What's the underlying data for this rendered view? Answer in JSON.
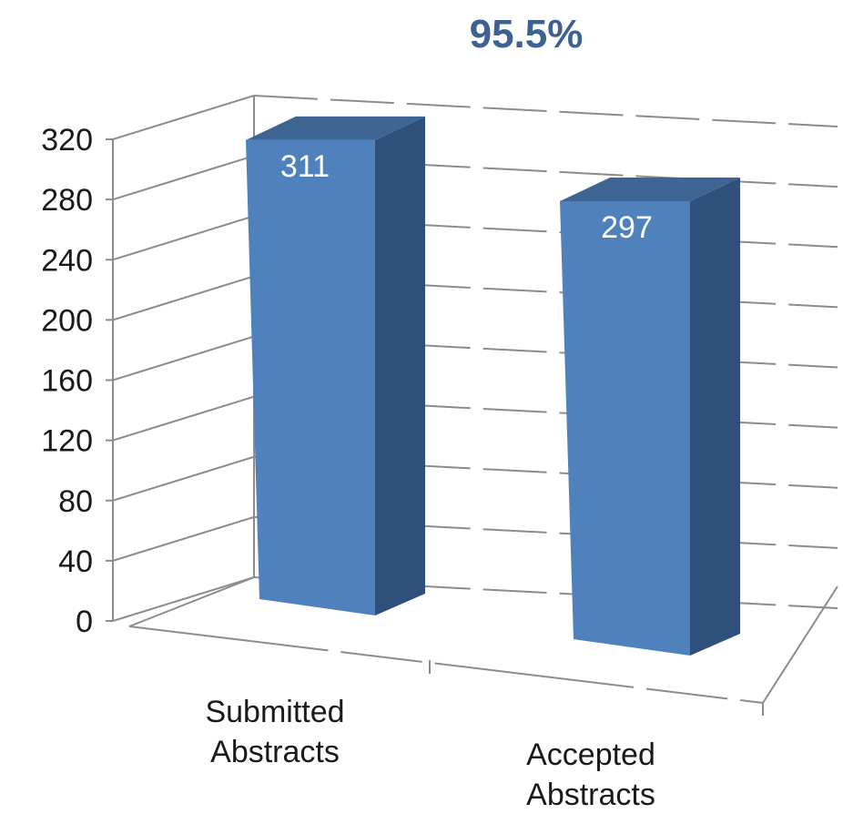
{
  "chart_data": {
    "type": "bar",
    "title": "95.5%",
    "categories": [
      "Submitted Abstracts",
      "Accepted Abstracts"
    ],
    "category_lines": [
      [
        "Submitted",
        "Abstracts"
      ],
      [
        "Accepted",
        "Abstracts"
      ]
    ],
    "values": [
      311,
      297
    ],
    "data_labels": [
      "311",
      "297"
    ],
    "ylim": [
      0,
      320
    ],
    "yticks": [
      0,
      40,
      80,
      120,
      160,
      200,
      240,
      280,
      320
    ],
    "ytick_labels": [
      "0",
      "40",
      "80",
      "120",
      "160",
      "200",
      "240",
      "280",
      "320"
    ],
    "grid": true,
    "three_d": true,
    "legend": "none",
    "colors": {
      "title": "#3D6292",
      "bar_front": "#4F81BD",
      "bar_side": "#2F507A",
      "bar_top": "#3E6494",
      "data_label": "#ffffff",
      "gridline": "#8C8C8C",
      "axis": "#8C8C8C",
      "tick_label": "#1a1a1a"
    }
  }
}
